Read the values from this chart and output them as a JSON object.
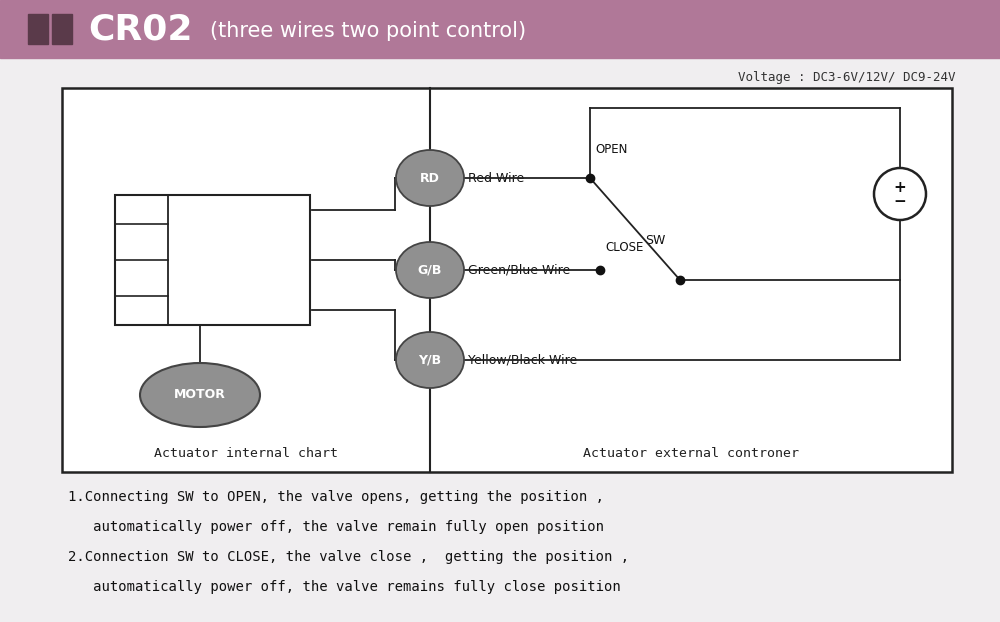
{
  "header_bg_color": "#b07898",
  "header_sq_color": "#5a3a4a",
  "voltage_text": "Voltage : DC3-6V/12V/ DC9-24V",
  "label_internal": "Actuator internal chart",
  "label_external": "Actuator external controner",
  "wire_labels": [
    "RD",
    "G/B",
    "Y/B"
  ],
  "wire_texts": [
    "Red Wire",
    "Green/Blue Wire",
    "Yellow/Black Wire"
  ],
  "motor_label": "MOTOR",
  "note1": "1.Connecting SW to OPEN, the valve opens, getting the position ,",
  "note1b": "   automatically power off, the valve remain fully open position",
  "note2": "2.Connection SW to CLOSE, the valve close ,  getting the position ,",
  "note2b": "   automatically power off, the valve remains fully close position",
  "page_bg": "#f0eef0",
  "diagram_bg": "#ffffff",
  "gray_ellipse": "#909090",
  "dark_line": "#222222"
}
